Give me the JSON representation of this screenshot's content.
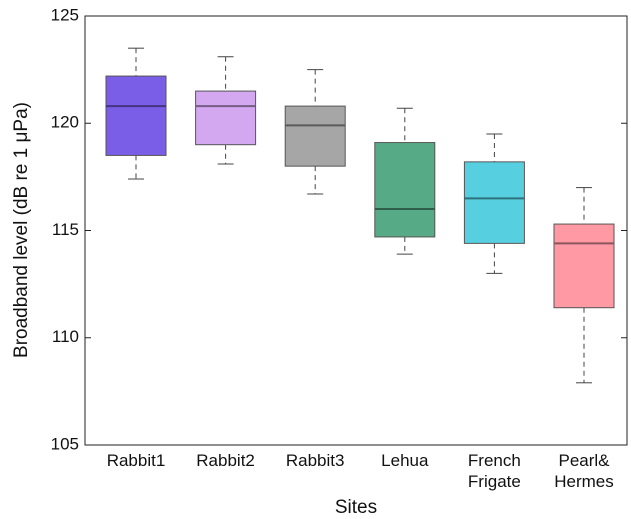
{
  "chart_data": {
    "type": "box",
    "y_label": "Broadband level (dB re 1 μPa)",
    "x_label": "Sites",
    "categories": [
      "Rabbit1",
      "Rabbit2",
      "Rabbit3",
      "Lehua",
      "French Frigate",
      "Pearl& Hermes"
    ],
    "boxes": [
      {
        "color": "#7b5ee8",
        "whisker_low": 117.4,
        "q1": 118.5,
        "median": 120.8,
        "q3": 122.2,
        "whisker_high": 123.5
      },
      {
        "color": "#d4a8f0",
        "whisker_low": 118.1,
        "q1": 119.0,
        "median": 120.8,
        "q3": 121.5,
        "whisker_high": 123.1
      },
      {
        "color": "#a6a6a6",
        "whisker_low": 116.7,
        "q1": 118.0,
        "median": 119.9,
        "q3": 120.8,
        "whisker_high": 122.5
      },
      {
        "color": "#56ab86",
        "whisker_low": 113.9,
        "q1": 114.7,
        "median": 116.0,
        "q3": 119.1,
        "whisker_high": 120.7
      },
      {
        "color": "#56d0e0",
        "whisker_low": 113.0,
        "q1": 114.4,
        "median": 116.5,
        "q3": 118.2,
        "whisker_high": 119.5
      },
      {
        "color": "#ff9aa5",
        "whisker_low": 107.9,
        "q1": 111.4,
        "median": 114.4,
        "q3": 115.3,
        "whisker_high": 117.0
      }
    ],
    "ylim": [
      105,
      125
    ],
    "yticks": [
      105,
      110,
      115,
      120,
      125
    ]
  }
}
